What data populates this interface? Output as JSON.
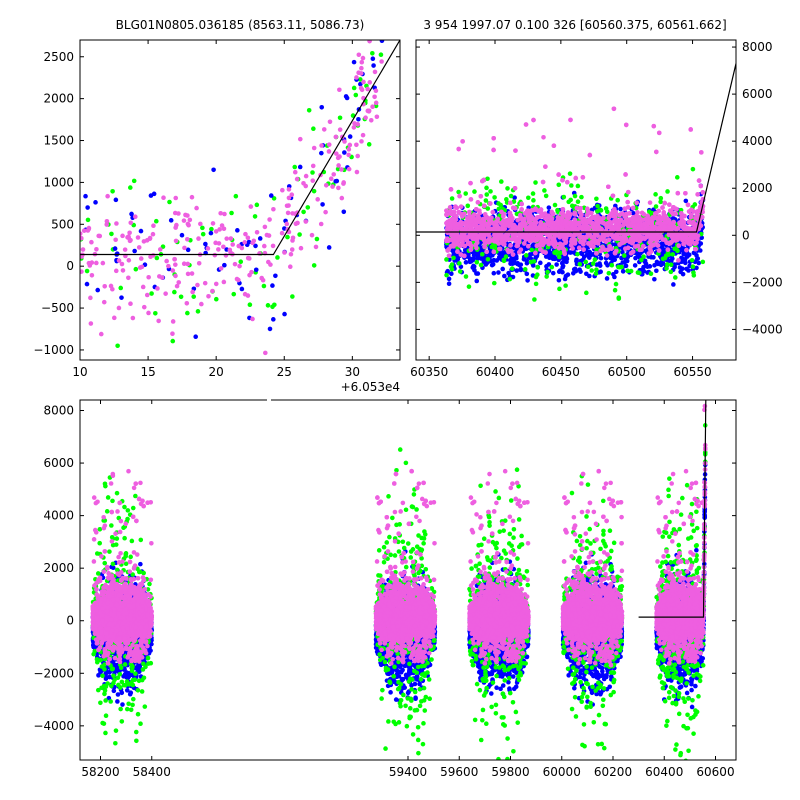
{
  "titles": {
    "left": "BLG01N0805.036185 (8563.11, 5086.73)",
    "right": "3 954 1997.07 0.100 326 [60560.375, 60561.662]"
  },
  "colors": {
    "green": "#00ff00",
    "blue": "#0000ff",
    "magenta": "#ee5fe0",
    "model": "#000000"
  },
  "chart_data": [
    {
      "panel": "zoom",
      "type": "scatter",
      "xlim": [
        10,
        33.5
      ],
      "ylim": [
        -1120,
        2700
      ],
      "xticks": [
        10,
        15,
        20,
        25,
        30
      ],
      "xtick_labels": [
        "10",
        "15",
        "20",
        "25",
        "30"
      ],
      "yticks": [
        -1000,
        -500,
        0,
        500,
        1000,
        1500,
        2000,
        2500
      ],
      "ytick_labels": [
        "−1000",
        "−500",
        "0",
        "500",
        "1000",
        "1500",
        "2000",
        "2500"
      ],
      "x_offset_label": "+6.053e4",
      "series": [
        {
          "color": "green",
          "count": 90
        },
        {
          "color": "blue",
          "count": 85
        },
        {
          "color": "magenta",
          "count": 280
        }
      ],
      "model": {
        "x": [
          10,
          24.2,
          33.5
        ],
        "y": [
          140,
          140,
          2700
        ]
      },
      "grid": false
    },
    {
      "panel": "mid",
      "type": "scatter",
      "xlim": [
        60340,
        60583
      ],
      "ylim": [
        -5300,
        8300
      ],
      "xticks": [
        60350,
        60400,
        60450,
        60500,
        60550
      ],
      "xtick_labels": [
        "60350",
        "60400",
        "60450",
        "60500",
        "60550"
      ],
      "yticks": [
        -4000,
        -2000,
        0,
        2000,
        4000,
        6000,
        8000
      ],
      "ytick_labels": [
        "−4000",
        "−2000",
        "0",
        "2000",
        "4000",
        "6000",
        "8000"
      ],
      "model": {
        "x": [
          60340,
          60553,
          60583
        ],
        "y": [
          140,
          140,
          7300
        ]
      },
      "grid": false
    },
    {
      "panel": "full",
      "type": "scatter",
      "xlim": [
        58120,
        60680
      ],
      "ylim": [
        -5300,
        8400
      ],
      "xticks": [
        58200,
        58400,
        59400,
        59600,
        59800,
        60000,
        60200,
        60400,
        60600
      ],
      "xtick_labels": [
        "58200",
        "58400",
        "59400",
        "59600",
        "59800",
        "60000",
        "60200",
        "60400",
        "60600"
      ],
      "yticks": [
        -4000,
        -2000,
        0,
        2000,
        4000,
        6000,
        8000
      ],
      "ytick_labels": [
        "−4000",
        "−2000",
        "0",
        "2000",
        "4000",
        "6000",
        "8000"
      ],
      "broken_axis": true,
      "seasons": [
        [
          58170,
          58400
        ],
        [
          59275,
          59505
        ],
        [
          59640,
          59870
        ],
        [
          60005,
          60235
        ],
        [
          60370,
          60560
        ]
      ],
      "model": {
        "x": [
          60300,
          60553,
          60562
        ],
        "y": [
          140,
          140,
          8400
        ]
      },
      "grid": false
    }
  ]
}
